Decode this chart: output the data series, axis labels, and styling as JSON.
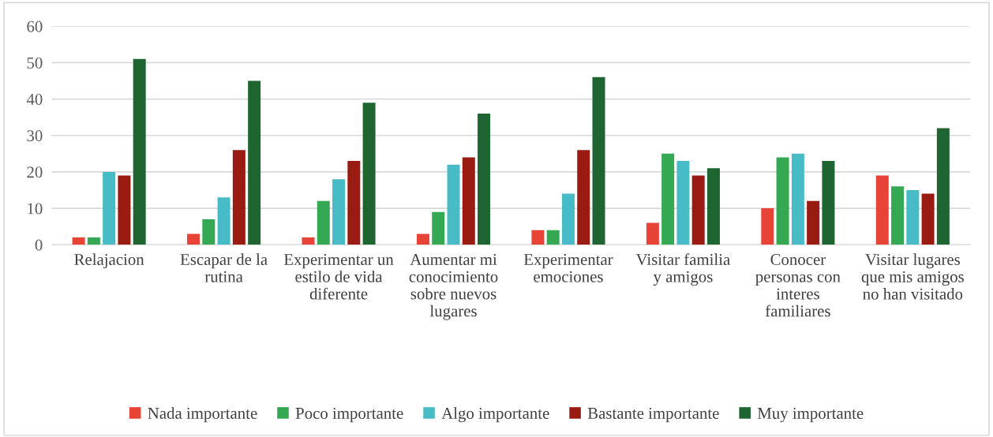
{
  "chart_data": {
    "type": "bar",
    "categories": [
      "Relajacion",
      "Escapar de la rutina",
      "Experimentar un estilo de vida diferente",
      "Aumentar mi conocimiento sobre nuevos lugares",
      "Experimentar emociones",
      "Visitar familia y amigos",
      "Conocer personas con interes familiares",
      "Visitar lugares que mis amigos no han visitado"
    ],
    "series": [
      {
        "name": "Nada importante",
        "color": "#e84337",
        "values": [
          2,
          3,
          2,
          3,
          4,
          6,
          10,
          19
        ]
      },
      {
        "name": "Poco importante",
        "color": "#34a853",
        "values": [
          2,
          7,
          12,
          9,
          4,
          25,
          24,
          16
        ]
      },
      {
        "name": "Algo importante",
        "color": "#47bcc6",
        "values": [
          20,
          13,
          18,
          22,
          14,
          23,
          25,
          15
        ]
      },
      {
        "name": "Bastante importante",
        "color": "#991b12",
        "values": [
          19,
          26,
          23,
          24,
          26,
          19,
          12,
          14
        ]
      },
      {
        "name": "Muy importante",
        "color": "#1f6532",
        "values": [
          51,
          45,
          39,
          36,
          46,
          21,
          23,
          32
        ]
      }
    ],
    "ylim": [
      0,
      60
    ],
    "yticks": [
      0,
      10,
      20,
      30,
      40,
      50,
      60
    ],
    "grid": "y",
    "legend": "bottom"
  }
}
